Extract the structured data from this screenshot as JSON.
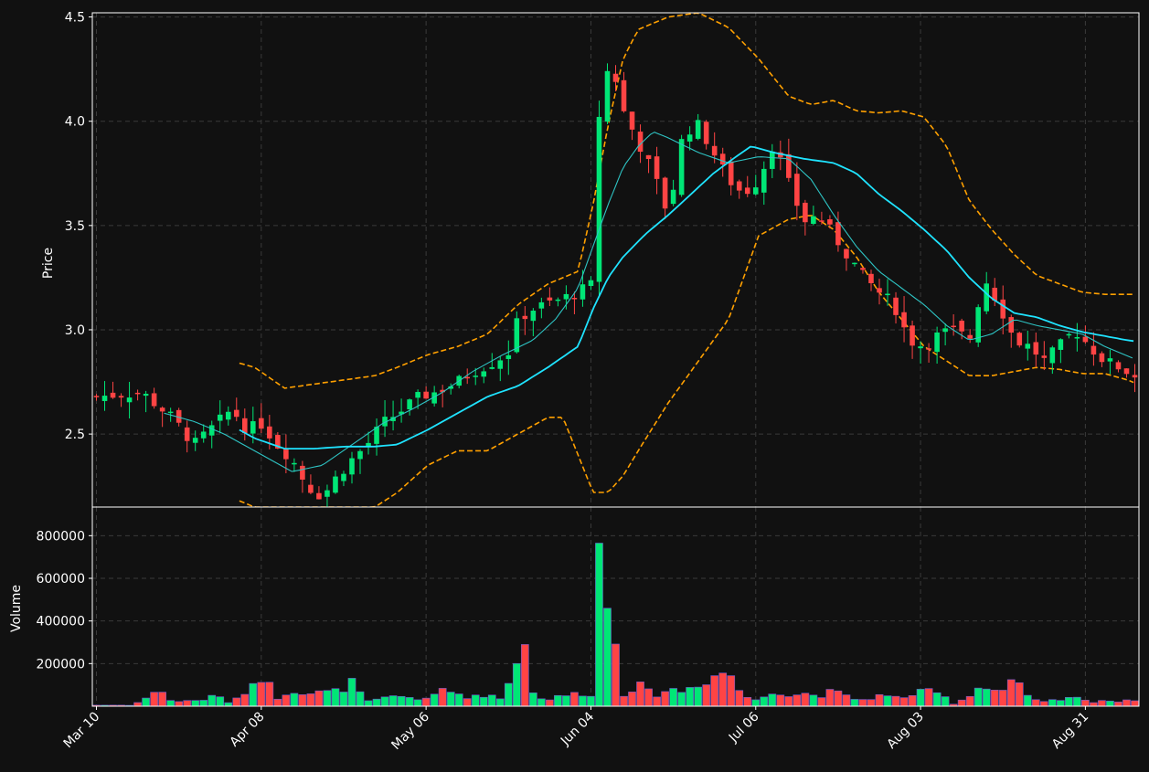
{
  "colors": {
    "background": "#111111",
    "up": "#00e676",
    "down": "#ff4444",
    "ma_fast": "#2ec4c4",
    "ma_slow": "#1fe3ff",
    "bands": "#ffa000",
    "grid": "#3a3a3a",
    "axis": "#ffffff"
  },
  "chart_data": {
    "type": "candlestick",
    "price_panel": {
      "ylabel": "Price",
      "ylim": [
        2.15,
        4.52
      ],
      "yticks": [
        "2.5",
        "3.0",
        "3.5",
        "4.0",
        "4.5"
      ],
      "ytick_values": [
        2.5,
        3.0,
        3.5,
        4.0,
        4.5
      ],
      "grid": true
    },
    "volume_panel": {
      "ylabel": "Volume",
      "ylim": [
        0,
        900000
      ],
      "yticks": [
        "200000",
        "400000",
        "600000",
        "800000"
      ],
      "ytick_values": [
        200000,
        400000,
        600000,
        800000
      ],
      "grid": true
    },
    "xaxis": {
      "ticks": [
        "Mar 10",
        "Apr 08",
        "May 06",
        "Jun 04",
        "Jul 06",
        "Aug 03",
        "Aug 31"
      ],
      "tick_index": [
        0,
        20,
        40,
        60,
        80,
        100,
        120
      ],
      "label_rotation": 45
    },
    "num_bars": 127,
    "close_path": [
      [
        0,
        2.68
      ],
      [
        6,
        2.7
      ],
      [
        10,
        2.58
      ],
      [
        13,
        2.45
      ],
      [
        16,
        2.55
      ],
      [
        18,
        2.62
      ],
      [
        20,
        2.52
      ],
      [
        22,
        2.55
      ],
      [
        24,
        2.45
      ],
      [
        26,
        2.38
      ],
      [
        28,
        2.25
      ],
      [
        30,
        2.2
      ],
      [
        32,
        2.3
      ],
      [
        34,
        2.38
      ],
      [
        36,
        2.45
      ],
      [
        38,
        2.55
      ],
      [
        40,
        2.6
      ],
      [
        43,
        2.68
      ],
      [
        45,
        2.7
      ],
      [
        48,
        2.75
      ],
      [
        50,
        2.8
      ],
      [
        53,
        2.85
      ],
      [
        55,
        2.9
      ],
      [
        56,
        3.05
      ],
      [
        58,
        3.1
      ],
      [
        62,
        3.15
      ],
      [
        64,
        3.18
      ],
      [
        66,
        3.22
      ],
      [
        67,
        4.22
      ],
      [
        68,
        4.24
      ],
      [
        69,
        4.2
      ],
      [
        70,
        4.05
      ],
      [
        72,
        3.9
      ],
      [
        74,
        3.75
      ],
      [
        76,
        3.55
      ],
      [
        78,
        3.95
      ],
      [
        80,
        3.98
      ],
      [
        82,
        3.85
      ],
      [
        84,
        3.72
      ],
      [
        86,
        3.65
      ],
      [
        88,
        3.72
      ],
      [
        90,
        3.9
      ],
      [
        92,
        3.7
      ],
      [
        94,
        3.52
      ],
      [
        96,
        3.55
      ],
      [
        98,
        3.45
      ],
      [
        100,
        3.35
      ],
      [
        102,
        3.25
      ],
      [
        104,
        3.18
      ],
      [
        106,
        3.12
      ],
      [
        108,
        2.95
      ],
      [
        110,
        2.92
      ],
      [
        112,
        2.98
      ],
      [
        114,
        3.0
      ],
      [
        116,
        2.95
      ],
      [
        118,
        3.25
      ],
      [
        120,
        3.12
      ],
      [
        122,
        2.95
      ],
      [
        124,
        2.92
      ],
      [
        126,
        2.85
      ],
      [
        128,
        2.92
      ],
      [
        130,
        3.0
      ],
      [
        132,
        2.92
      ],
      [
        134,
        2.85
      ],
      [
        136,
        2.82
      ],
      [
        138,
        2.78
      ]
    ],
    "ma_fast_path": [
      [
        9,
        2.6
      ],
      [
        13,
        2.56
      ],
      [
        17,
        2.5
      ],
      [
        22,
        2.4
      ],
      [
        26,
        2.32
      ],
      [
        30,
        2.35
      ],
      [
        34,
        2.45
      ],
      [
        38,
        2.55
      ],
      [
        42,
        2.62
      ],
      [
        46,
        2.7
      ],
      [
        50,
        2.8
      ],
      [
        54,
        2.88
      ],
      [
        58,
        2.95
      ],
      [
        61,
        3.05
      ],
      [
        64,
        3.2
      ],
      [
        66,
        3.4
      ],
      [
        68,
        3.6
      ],
      [
        70,
        3.78
      ],
      [
        72,
        3.88
      ],
      [
        74,
        3.95
      ],
      [
        76,
        3.92
      ],
      [
        80,
        3.85
      ],
      [
        84,
        3.8
      ],
      [
        88,
        3.83
      ],
      [
        92,
        3.82
      ],
      [
        95,
        3.72
      ],
      [
        98,
        3.55
      ],
      [
        101,
        3.4
      ],
      [
        104,
        3.28
      ],
      [
        107,
        3.2
      ],
      [
        110,
        3.12
      ],
      [
        113,
        3.02
      ],
      [
        116,
        2.95
      ],
      [
        119,
        2.98
      ],
      [
        122,
        3.05
      ],
      [
        125,
        3.02
      ],
      [
        128,
        3.0
      ],
      [
        131,
        2.98
      ],
      [
        134,
        2.92
      ],
      [
        138,
        2.86
      ]
    ],
    "ma_slow_path": [
      [
        19,
        2.52
      ],
      [
        21,
        2.48
      ],
      [
        25,
        2.43
      ],
      [
        29,
        2.43
      ],
      [
        33,
        2.44
      ],
      [
        37,
        2.44
      ],
      [
        40,
        2.45
      ],
      [
        44,
        2.52
      ],
      [
        48,
        2.6
      ],
      [
        52,
        2.68
      ],
      [
        56,
        2.73
      ],
      [
        60,
        2.82
      ],
      [
        64,
        2.92
      ],
      [
        66,
        3.1
      ],
      [
        68,
        3.25
      ],
      [
        70,
        3.35
      ],
      [
        73,
        3.46
      ],
      [
        76,
        3.55
      ],
      [
        79,
        3.65
      ],
      [
        82,
        3.75
      ],
      [
        85,
        3.83
      ],
      [
        87,
        3.88
      ],
      [
        90,
        3.85
      ],
      [
        94,
        3.82
      ],
      [
        98,
        3.8
      ],
      [
        101,
        3.75
      ],
      [
        104,
        3.65
      ],
      [
        107,
        3.57
      ],
      [
        110,
        3.48
      ],
      [
        113,
        3.38
      ],
      [
        116,
        3.25
      ],
      [
        119,
        3.15
      ],
      [
        122,
        3.08
      ],
      [
        125,
        3.06
      ],
      [
        128,
        3.02
      ],
      [
        131,
        2.99
      ],
      [
        134,
        2.97
      ],
      [
        137,
        2.95
      ],
      [
        139,
        2.94
      ]
    ],
    "upper_band_path": [
      [
        19,
        2.84
      ],
      [
        21,
        2.82
      ],
      [
        25,
        2.72
      ],
      [
        29,
        2.74
      ],
      [
        33,
        2.76
      ],
      [
        37,
        2.78
      ],
      [
        40,
        2.82
      ],
      [
        44,
        2.88
      ],
      [
        48,
        2.92
      ],
      [
        52,
        2.98
      ],
      [
        56,
        3.12
      ],
      [
        60,
        3.22
      ],
      [
        64,
        3.28
      ],
      [
        66,
        3.6
      ],
      [
        68,
        3.98
      ],
      [
        70,
        4.3
      ],
      [
        72,
        4.44
      ],
      [
        76,
        4.5
      ],
      [
        80,
        4.52
      ],
      [
        84,
        4.45
      ],
      [
        88,
        4.3
      ],
      [
        92,
        4.12
      ],
      [
        95,
        4.08
      ],
      [
        98,
        4.1
      ],
      [
        101,
        4.05
      ],
      [
        104,
        4.04
      ],
      [
        107,
        4.05
      ],
      [
        110,
        4.02
      ],
      [
        113,
        3.88
      ],
      [
        116,
        3.62
      ],
      [
        119,
        3.48
      ],
      [
        122,
        3.36
      ],
      [
        125,
        3.26
      ],
      [
        128,
        3.22
      ],
      [
        131,
        3.18
      ],
      [
        134,
        3.17
      ],
      [
        138,
        3.17
      ],
      [
        141,
        3.17
      ]
    ],
    "lower_band_path": [
      [
        19,
        2.18
      ],
      [
        21,
        2.15
      ],
      [
        25,
        2.15
      ],
      [
        29,
        2.15
      ],
      [
        33,
        2.15
      ],
      [
        37,
        2.15
      ],
      [
        40,
        2.22
      ],
      [
        44,
        2.35
      ],
      [
        48,
        2.42
      ],
      [
        52,
        2.42
      ],
      [
        56,
        2.5
      ],
      [
        60,
        2.58
      ],
      [
        62,
        2.58
      ],
      [
        64,
        2.4
      ],
      [
        66,
        2.22
      ],
      [
        68,
        2.22
      ],
      [
        70,
        2.3
      ],
      [
        72,
        2.42
      ],
      [
        76,
        2.65
      ],
      [
        80,
        2.85
      ],
      [
        84,
        3.05
      ],
      [
        88,
        3.45
      ],
      [
        92,
        3.53
      ],
      [
        95,
        3.55
      ],
      [
        98,
        3.48
      ],
      [
        101,
        3.35
      ],
      [
        104,
        3.18
      ],
      [
        107,
        3.05
      ],
      [
        110,
        2.92
      ],
      [
        113,
        2.85
      ],
      [
        116,
        2.78
      ],
      [
        119,
        2.78
      ],
      [
        122,
        2.8
      ],
      [
        125,
        2.82
      ],
      [
        128,
        2.81
      ],
      [
        131,
        2.79
      ],
      [
        134,
        2.79
      ],
      [
        137,
        2.76
      ],
      [
        141,
        2.7
      ]
    ],
    "volume_path": [
      [
        0,
        5000
      ],
      [
        5,
        5000
      ],
      [
        6,
        30000
      ],
      [
        9,
        80000
      ],
      [
        10,
        20000
      ],
      [
        14,
        30000
      ],
      [
        16,
        50000
      ],
      [
        18,
        10000
      ],
      [
        20,
        80000
      ],
      [
        22,
        150000
      ],
      [
        24,
        40000
      ],
      [
        26,
        80000
      ],
      [
        28,
        60000
      ],
      [
        32,
        70000
      ],
      [
        34,
        110000
      ],
      [
        36,
        20000
      ],
      [
        40,
        50000
      ],
      [
        44,
        30000
      ],
      [
        46,
        80000
      ],
      [
        50,
        40000
      ],
      [
        52,
        60000
      ],
      [
        54,
        30000
      ],
      [
        56,
        250000
      ],
      [
        57,
        330000
      ],
      [
        58,
        60000
      ],
      [
        60,
        30000
      ],
      [
        62,
        50000
      ],
      [
        64,
        60000
      ],
      [
        66,
        60000
      ],
      [
        67,
        880000
      ],
      [
        68,
        420000
      ],
      [
        69,
        340000
      ],
      [
        70,
        60000
      ],
      [
        72,
        100000
      ],
      [
        74,
        50000
      ],
      [
        76,
        80000
      ],
      [
        78,
        70000
      ],
      [
        80,
        110000
      ],
      [
        82,
        140000
      ],
      [
        84,
        170000
      ],
      [
        86,
        40000
      ],
      [
        88,
        30000
      ],
      [
        90,
        80000
      ],
      [
        92,
        50000
      ],
      [
        94,
        60000
      ],
      [
        96,
        50000
      ],
      [
        98,
        70000
      ],
      [
        100,
        40000
      ],
      [
        102,
        30000
      ],
      [
        104,
        50000
      ],
      [
        106,
        40000
      ],
      [
        108,
        50000
      ],
      [
        110,
        70000
      ],
      [
        112,
        60000
      ],
      [
        114,
        10000
      ],
      [
        116,
        50000
      ],
      [
        118,
        110000
      ],
      [
        120,
        60000
      ],
      [
        122,
        140000
      ],
      [
        124,
        30000
      ],
      [
        126,
        20000
      ],
      [
        128,
        30000
      ],
      [
        130,
        40000
      ],
      [
        132,
        20000
      ],
      [
        134,
        30000
      ],
      [
        136,
        20000
      ],
      [
        138,
        30000
      ]
    ]
  }
}
